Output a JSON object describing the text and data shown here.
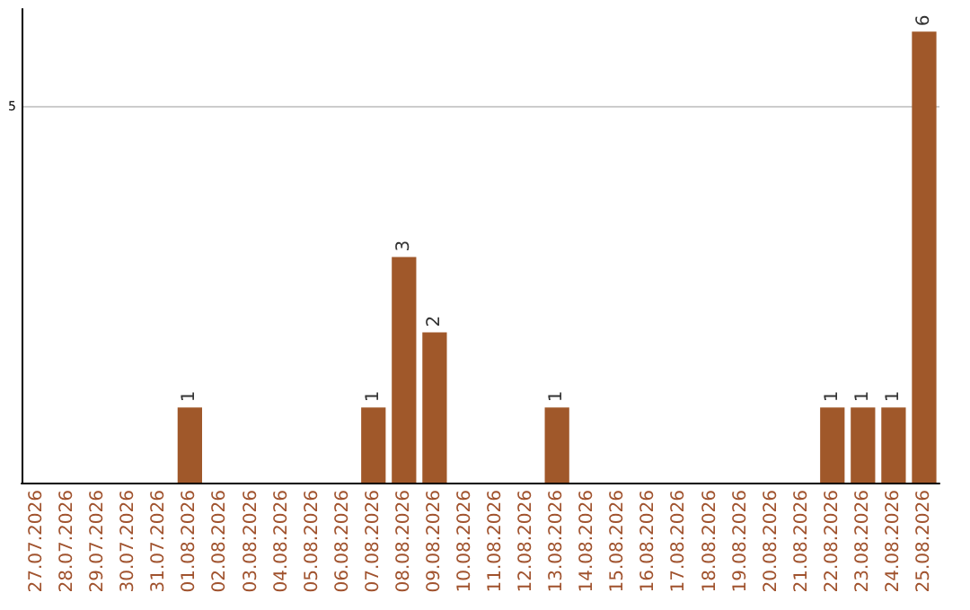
{
  "chart_data": {
    "type": "bar",
    "categories": [
      "27.07.2026",
      "28.07.2026",
      "29.07.2026",
      "30.07.2026",
      "31.07.2026",
      "01.08.2026",
      "02.08.2026",
      "03.08.2026",
      "04.08.2026",
      "05.08.2026",
      "06.08.2026",
      "07.08.2026",
      "08.08.2026",
      "09.08.2026",
      "10.08.2026",
      "11.08.2026",
      "12.08.2026",
      "13.08.2026",
      "14.08.2026",
      "15.08.2026",
      "16.08.2026",
      "17.08.2026",
      "18.08.2026",
      "19.08.2026",
      "20.08.2026",
      "21.08.2026",
      "22.08.2026",
      "23.08.2026",
      "24.08.2026",
      "25.08.2026"
    ],
    "values": [
      0,
      0,
      0,
      0,
      0,
      1,
      0,
      0,
      0,
      0,
      0,
      1,
      3,
      2,
      0,
      0,
      0,
      1,
      0,
      0,
      0,
      0,
      0,
      0,
      0,
      0,
      1,
      1,
      1,
      6
    ],
    "color": "#a0582a",
    "value_labels": [
      null,
      null,
      null,
      null,
      null,
      "1",
      null,
      null,
      null,
      null,
      null,
      "1",
      "3",
      "2",
      null,
      null,
      null,
      "1",
      null,
      null,
      null,
      null,
      null,
      null,
      null,
      null,
      "1",
      "1",
      "1",
      "6"
    ],
    "ylim": [
      0,
      6.3
    ],
    "yticks": [
      5
    ],
    "grid": "y"
  }
}
